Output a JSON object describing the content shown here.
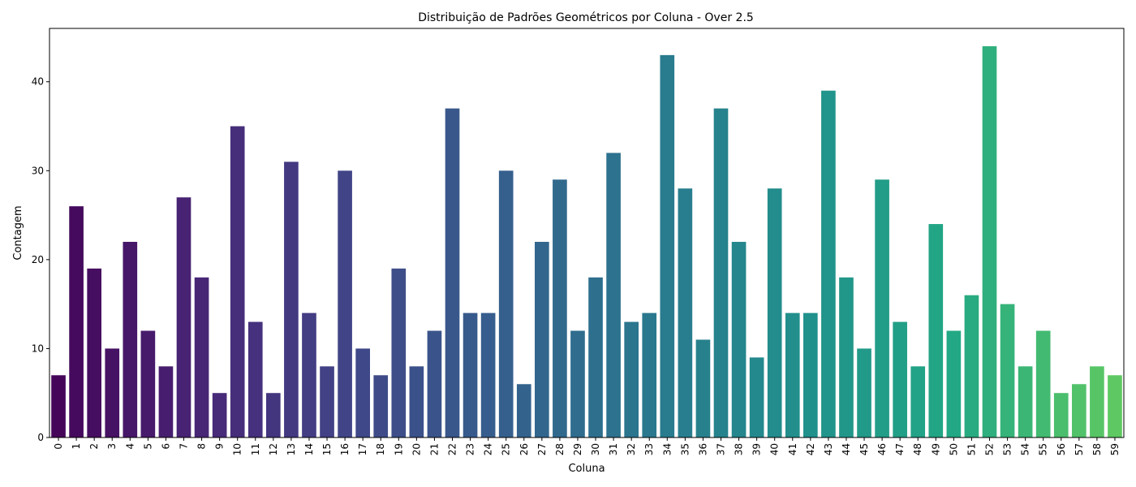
{
  "chart_data": {
    "type": "bar",
    "title": "Distribuição de Padrões Geométricos por Coluna - Over 2.5",
    "xlabel": "Coluna",
    "ylabel": "Contagem",
    "ylim": [
      0,
      46
    ],
    "yticks": [
      0,
      10,
      20,
      30,
      40
    ],
    "grid": false,
    "palette": "viridis",
    "categories": [
      "0",
      "1",
      "2",
      "3",
      "4",
      "5",
      "6",
      "7",
      "8",
      "9",
      "10",
      "11",
      "12",
      "13",
      "14",
      "15",
      "16",
      "17",
      "18",
      "19",
      "20",
      "21",
      "22",
      "23",
      "24",
      "25",
      "26",
      "27",
      "28",
      "29",
      "30",
      "31",
      "32",
      "33",
      "34",
      "35",
      "36",
      "37",
      "38",
      "39",
      "40",
      "41",
      "42",
      "43",
      "44",
      "45",
      "46",
      "47",
      "48",
      "49",
      "50",
      "51",
      "52",
      "53",
      "54",
      "55",
      "56",
      "57",
      "58",
      "59"
    ],
    "values": [
      7,
      26,
      19,
      10,
      22,
      12,
      8,
      27,
      18,
      5,
      35,
      13,
      5,
      31,
      14,
      8,
      30,
      10,
      7,
      19,
      8,
      12,
      37,
      14,
      14,
      30,
      6,
      22,
      29,
      12,
      18,
      32,
      13,
      14,
      43,
      28,
      11,
      37,
      22,
      9,
      28,
      14,
      14,
      39,
      18,
      10,
      29,
      13,
      8,
      24,
      12,
      16,
      44,
      15,
      8,
      12,
      5,
      6,
      8,
      7
    ]
  }
}
